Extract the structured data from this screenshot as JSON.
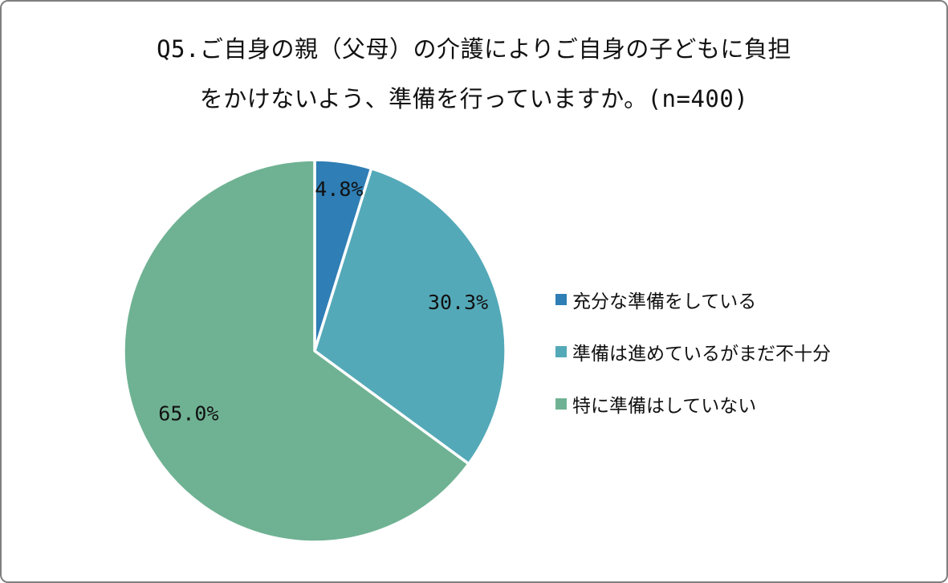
{
  "title": {
    "line1": "Q5.ご自身の親（父母）の介護によりご自身の子どもに負担",
    "line2": "をかけないよう、準備を行っていますか。(n=400)"
  },
  "chart_data": {
    "type": "pie",
    "title": "Q5.ご自身の親（父母）の介護によりご自身の子どもに負担をかけないよう、準備を行っていますか。(n=400)",
    "sample_size_label": "(n=400)",
    "categories": [
      "充分な準備をしている",
      "準備は進めているがまだ不十分",
      "特に準備はしていない"
    ],
    "values": [
      4.8,
      30.3,
      65.0
    ],
    "data_labels": [
      "4.8%",
      "30.3%",
      "65.0%"
    ],
    "colors": [
      "#2f7eb5",
      "#54a9b8",
      "#6fb293"
    ],
    "start_angle_deg": -90,
    "direction": "clockwise",
    "legend_position": "right",
    "label_radius": [
      0.85,
      0.79,
      0.74
    ],
    "stroke_color": "#ffffff"
  }
}
